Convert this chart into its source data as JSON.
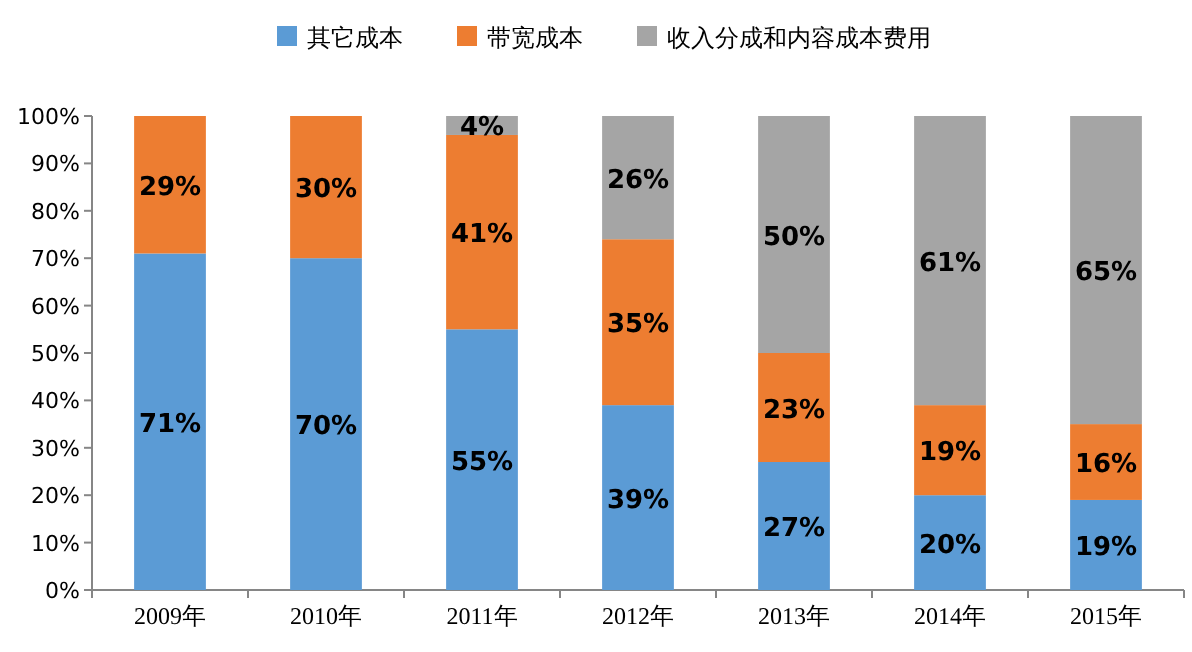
{
  "chart_data": {
    "type": "bar",
    "stacked": true,
    "legend": "top",
    "grid": false,
    "categories": [
      "2009年",
      "2010年",
      "2011年",
      "2012年",
      "2013年",
      "2014年",
      "2015年"
    ],
    "series": [
      {
        "name": "其它成本",
        "color": "#5b9bd5",
        "values": [
          71,
          70,
          55,
          39,
          27,
          20,
          19
        ],
        "value_labels": [
          "71%",
          "70%",
          "55%",
          "39%",
          "27%",
          "20%",
          "19%"
        ]
      },
      {
        "name": "带宽成本",
        "color": "#ed7d31",
        "values": [
          29,
          30,
          41,
          35,
          23,
          19,
          16
        ],
        "value_labels": [
          "29%",
          "30%",
          "41%",
          "35%",
          "23%",
          "19%",
          "16%"
        ]
      },
      {
        "name": "收入分成和内容成本费用",
        "color": "#a5a5a5",
        "values": [
          0,
          0,
          4,
          26,
          50,
          61,
          65
        ],
        "value_labels": [
          null,
          null,
          "4%",
          "26%",
          "50%",
          "61%",
          "65%"
        ]
      }
    ],
    "ylim": [
      0,
      100
    ],
    "yticks": [
      {
        "value": 0,
        "label": "0%"
      },
      {
        "value": 10,
        "label": "10%"
      },
      {
        "value": 20,
        "label": "20%"
      },
      {
        "value": 30,
        "label": "30%"
      },
      {
        "value": 40,
        "label": "40%"
      },
      {
        "value": 50,
        "label": "50%"
      },
      {
        "value": 60,
        "label": "60%"
      },
      {
        "value": 70,
        "label": "70%"
      },
      {
        "value": 80,
        "label": "80%"
      },
      {
        "value": 90,
        "label": "90%"
      },
      {
        "value": 100,
        "label": "100%"
      }
    ]
  }
}
